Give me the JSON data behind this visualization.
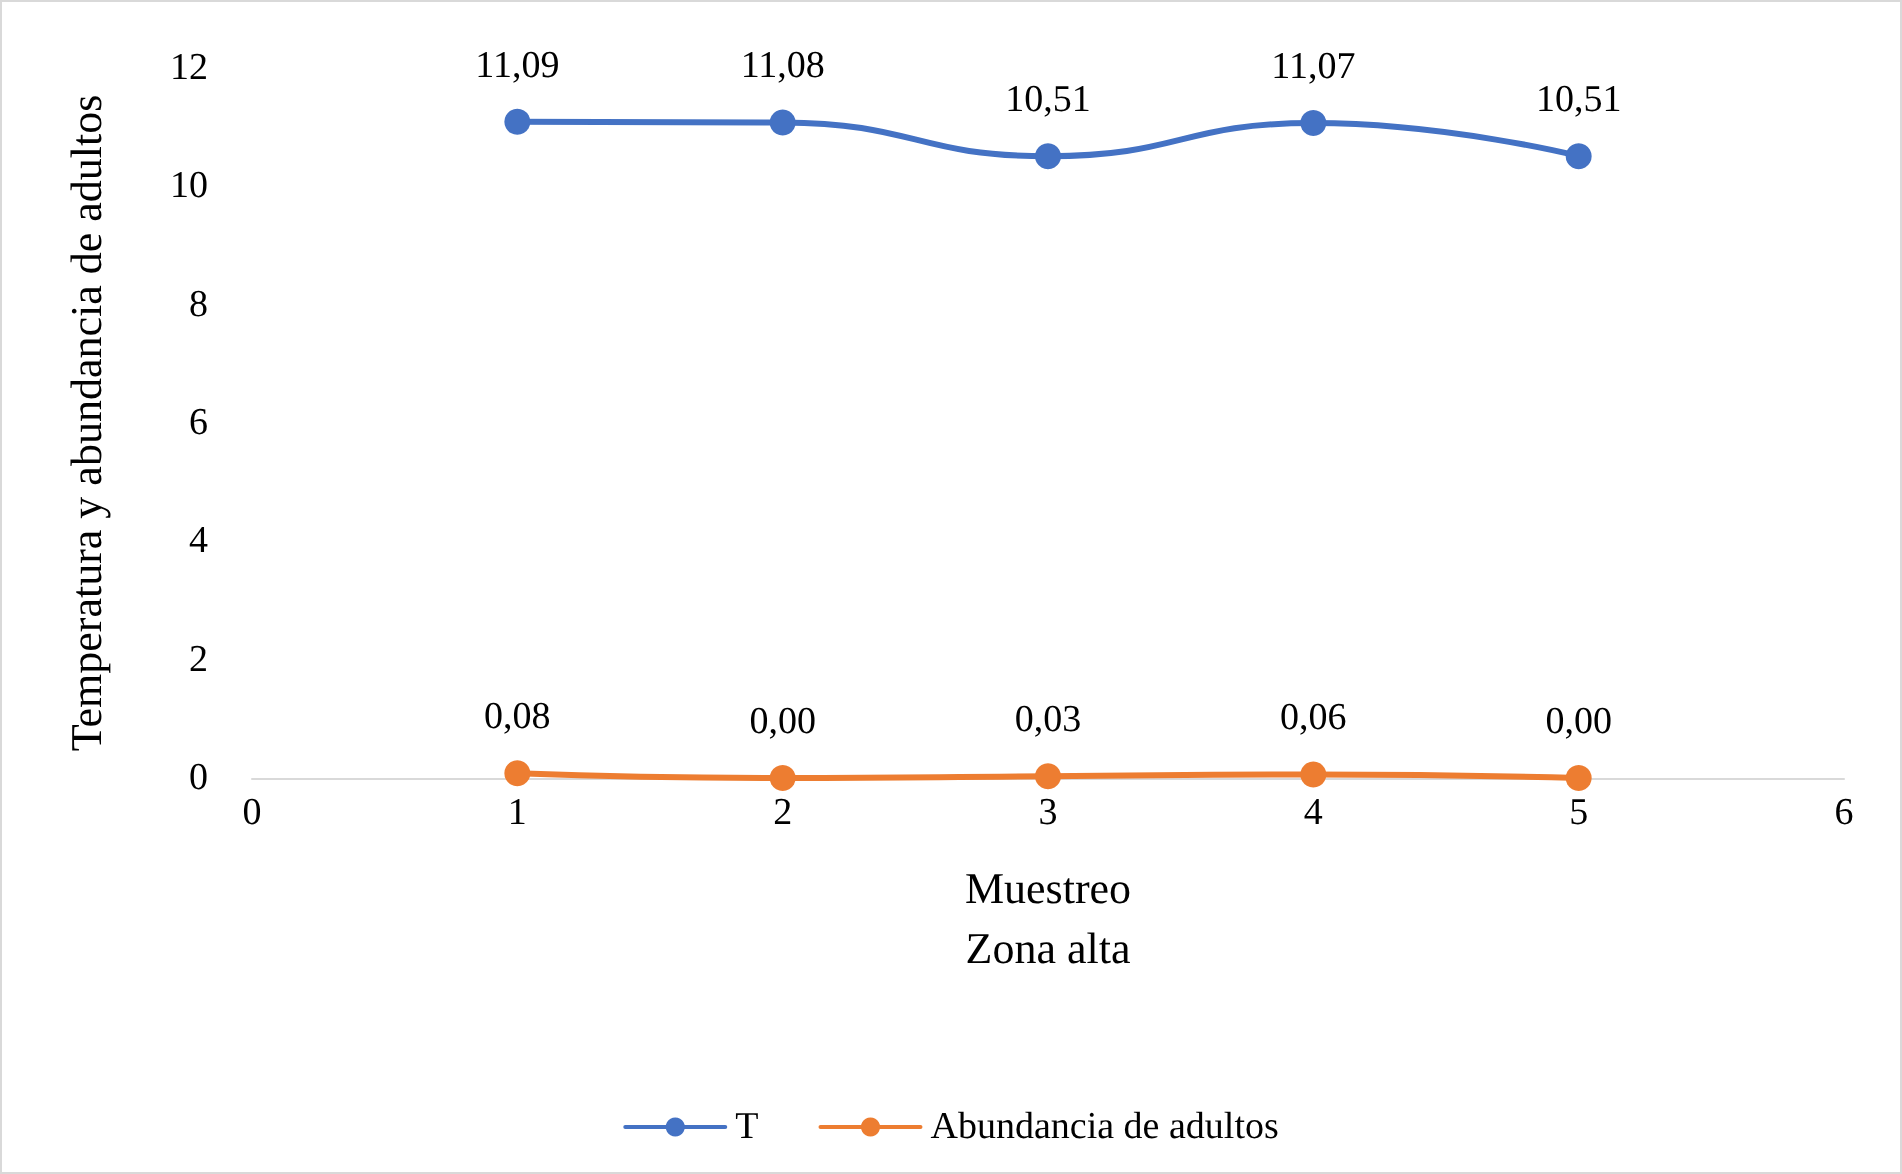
{
  "chart_data": {
    "type": "line",
    "xlabel": "Muestreo\nZona alta",
    "ylabel": "Temperatura y abundancia de adultos",
    "x": [
      1,
      2,
      3,
      4,
      5
    ],
    "xlim": [
      0,
      6
    ],
    "xticks": [
      0,
      1,
      2,
      3,
      4,
      5,
      6
    ],
    "ylim": [
      0,
      12
    ],
    "yticks": [
      0,
      2,
      4,
      6,
      8,
      10,
      12
    ],
    "series": [
      {
        "name": "T",
        "color": "#4472c4",
        "values": [
          11.09,
          11.08,
          10.51,
          11.07,
          10.51
        ],
        "value_labels": [
          "11,09",
          "11,08",
          "10,51",
          "11,07",
          "10,51"
        ]
      },
      {
        "name": "Abundancia de adultos",
        "color": "#ed7d31",
        "values": [
          0.08,
          0,
          0.03,
          0.06,
          0
        ],
        "value_labels": [
          "0,08",
          "0,00",
          "0,03",
          "0,06",
          "0,00"
        ]
      }
    ],
    "marker": "circle",
    "line_style": "solid",
    "grid": false,
    "legend": "bottom"
  }
}
